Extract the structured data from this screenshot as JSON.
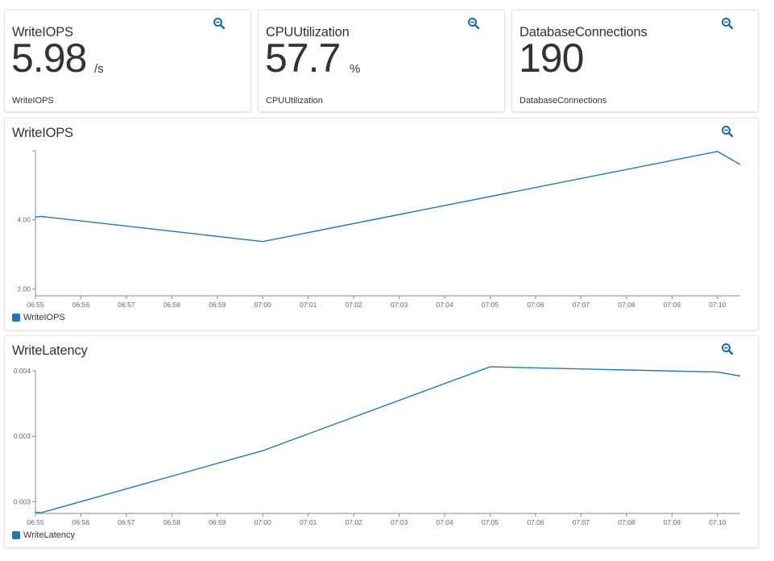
{
  "colors": {
    "accent": "#1f77b4",
    "zoom_icon": "#1a6aa8",
    "axis": "#888888"
  },
  "stat_cards": [
    {
      "title": "WriteIOPS",
      "value": "5.98",
      "unit": "/s",
      "label": "WriteIOPS",
      "icon": "zoom-icon"
    },
    {
      "title": "CPUUtilization",
      "value": "57.7",
      "unit": "%",
      "label": "CPUUtilization",
      "icon": "zoom-icon"
    },
    {
      "title": "DatabaseConnections",
      "value": "190",
      "unit": "",
      "label": "DatabaseConnections",
      "icon": "zoom-icon"
    }
  ],
  "charts": [
    {
      "title": "WriteIOPS",
      "legend": "WriteIOPS",
      "icon": "zoom-icon"
    },
    {
      "title": "WriteLatency",
      "legend": "WriteLatency",
      "icon": "zoom-icon"
    }
  ],
  "chart_data": [
    {
      "type": "line",
      "title": "WriteIOPS",
      "x": [
        "06:55",
        "06:55",
        "07:00",
        "07:10",
        "07:10"
      ],
      "x_numeric_minutes": [
        0,
        0.12,
        5.0,
        15.0,
        15.5
      ],
      "series": [
        {
          "name": "WriteIOPS",
          "values": [
            4.08,
            4.1,
            3.37,
            5.98,
            5.6
          ]
        }
      ],
      "ylim": [
        1.8,
        6.0
      ],
      "yticks": [
        2.0,
        4.0
      ],
      "ytick_labels": [
        "2.00",
        "4.00"
      ],
      "xticks": [
        "06:55",
        "06:56",
        "06:57",
        "06:58",
        "06:59",
        "07:00",
        "07:01",
        "07:02",
        "07:03",
        "07:04",
        "07:05",
        "07:06",
        "07:07",
        "07:08",
        "07:09",
        "07:10"
      ],
      "xlim_minutes": [
        0,
        15.5
      ],
      "grid": false,
      "legend_position": "bottom-left"
    },
    {
      "type": "line",
      "title": "WriteLatency",
      "x": [
        "06:55",
        "06:55",
        "07:00",
        "07:05",
        "07:10",
        "07:10"
      ],
      "x_numeric_minutes": [
        0,
        0.12,
        5.0,
        10.0,
        15.0,
        15.5
      ],
      "series": [
        {
          "name": "WriteLatency",
          "values": [
            0.00292,
            0.002915,
            0.00339,
            0.00403,
            0.00399,
            0.00396
          ]
        }
      ],
      "ylim": [
        0.00291,
        0.004
      ],
      "yticks": [
        0.003,
        0.0035,
        0.004
      ],
      "ytick_labels": [
        "0.003",
        "0.003",
        "0.004"
      ],
      "xticks": [
        "06:55",
        "06:56",
        "06:57",
        "06:58",
        "06:59",
        "07:00",
        "07:01",
        "07:02",
        "07:03",
        "07:04",
        "07:05",
        "07:06",
        "07:07",
        "07:08",
        "07:09",
        "07:10"
      ],
      "xlim_minutes": [
        0,
        15.5
      ],
      "grid": false,
      "legend_position": "bottom-left"
    }
  ]
}
